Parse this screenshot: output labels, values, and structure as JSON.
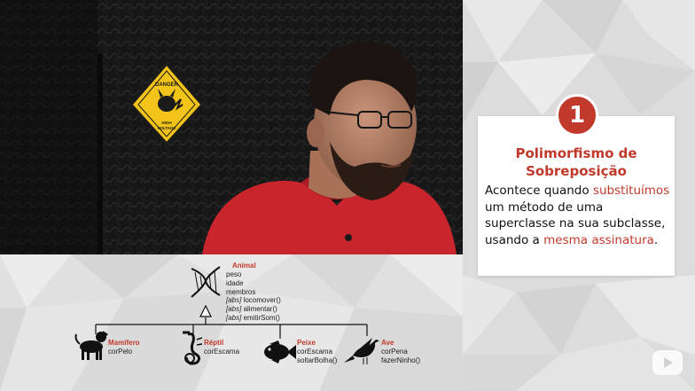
{
  "card": {
    "number": "1",
    "title_line1": "Polimorfismo de",
    "title_line2": "Sobreposição",
    "body": {
      "p1": "Acontece quando ",
      "h1": "substituímos",
      "p2": " um método de uma superclasse na sua subclasse, usando a ",
      "h2": "mesma assinatura",
      "p3": "."
    }
  },
  "sign": {
    "top": "DANGER",
    "bottom1": "HIGH",
    "bottom2": "VOLTAGE"
  },
  "diagram": {
    "superclass": {
      "name": "Animal",
      "attributes": [
        "peso",
        "idade",
        "membros"
      ],
      "methods": [
        {
          "abs": "[abs]",
          "name": " locomover()"
        },
        {
          "abs": "[abs]",
          "name": " alimentar()"
        },
        {
          "abs": "[abs]",
          "name": " emitirSom()"
        }
      ]
    },
    "subclasses": [
      {
        "name": "Mamífero",
        "members": [
          "corPelo"
        ]
      },
      {
        "name": "Réptil",
        "members": [
          "corEscama"
        ]
      },
      {
        "name": "Peixe",
        "members": [
          "corEscama",
          "soltarBolha()"
        ]
      },
      {
        "name": "Ave",
        "members": [
          "corPena",
          "fazerNinho()"
        ]
      }
    ]
  },
  "colors": {
    "accent": "#c0392b",
    "shirt": "#c9252c",
    "sign": "#f2c318"
  },
  "icons": [
    "dna-icon",
    "dog-icon",
    "seahorse-icon",
    "fish-icon",
    "bird-icon",
    "inheritance-arrow-icon",
    "play-logo-icon"
  ]
}
